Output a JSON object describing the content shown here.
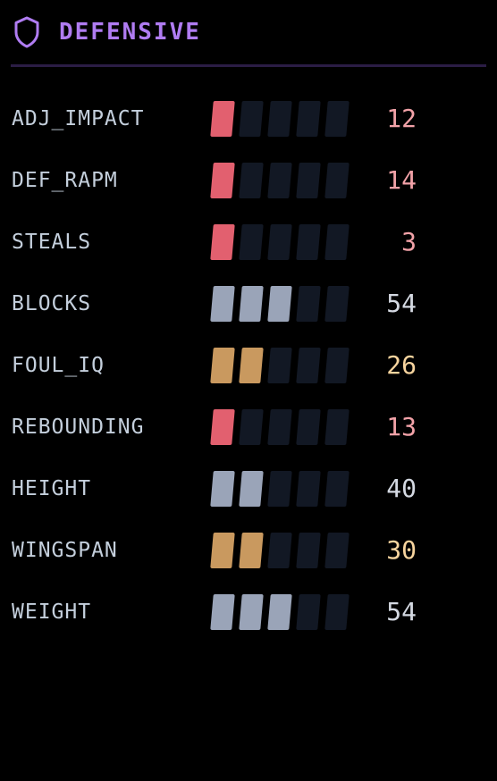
{
  "header": {
    "title": "DEFENSIVE",
    "icon": "shield-icon",
    "accent_color": "#b07cf2"
  },
  "colors": {
    "low": "#e2606f",
    "low_text": "#f2a2a8",
    "mid": "#c9995f",
    "mid_text": "#f7d49e",
    "high": "#9aa4b8",
    "high_text": "#d4d9e2",
    "empty": "#121824"
  },
  "stats": [
    {
      "label": "ADJ_IMPACT",
      "value": "12",
      "filled": 1,
      "tier": "low"
    },
    {
      "label": "DEF_RAPM",
      "value": "14",
      "filled": 1,
      "tier": "low"
    },
    {
      "label": "STEALS",
      "value": "3",
      "filled": 1,
      "tier": "low"
    },
    {
      "label": "BLOCKS",
      "value": "54",
      "filled": 3,
      "tier": "high"
    },
    {
      "label": "FOUL_IQ",
      "value": "26",
      "filled": 2,
      "tier": "mid"
    },
    {
      "label": "REBOUNDING",
      "value": "13",
      "filled": 1,
      "tier": "low"
    },
    {
      "label": "HEIGHT",
      "value": "40",
      "filled": 2,
      "tier": "high"
    },
    {
      "label": "WINGSPAN",
      "value": "30",
      "filled": 2,
      "tier": "mid"
    },
    {
      "label": "WEIGHT",
      "value": "54",
      "filled": 3,
      "tier": "high"
    }
  ]
}
